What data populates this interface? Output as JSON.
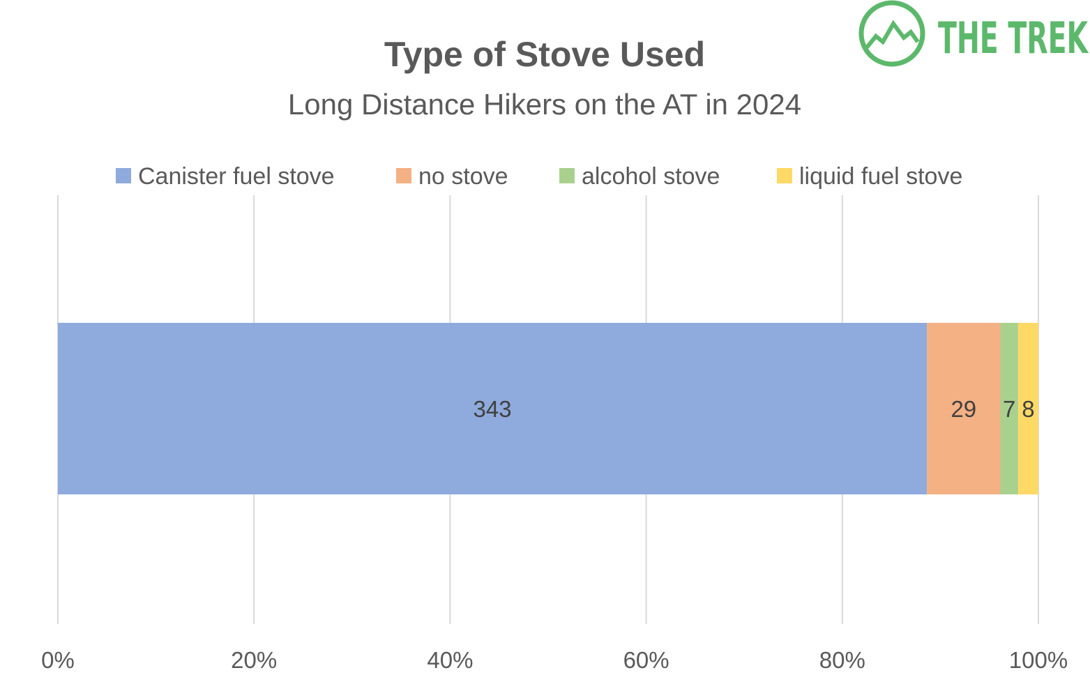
{
  "logo": {
    "text": "THE TREK",
    "color": "#5cb86b"
  },
  "chart_data": {
    "type": "bar",
    "orientation": "horizontal",
    "stacked": "percent",
    "title": "Type of Stove Used",
    "subtitle": "Long Distance Hikers on the AT in 2024",
    "categories": [
      ""
    ],
    "series": [
      {
        "name": "Canister fuel stove",
        "values": [
          343
        ],
        "color": "#8faadc"
      },
      {
        "name": "no stove",
        "values": [
          29
        ],
        "color": "#f4b183"
      },
      {
        "name": "alcohol stove",
        "values": [
          7
        ],
        "color": "#a9d18e"
      },
      {
        "name": "liquid fuel stove",
        "values": [
          8
        ],
        "color": "#ffd966"
      }
    ],
    "x_ticks": [
      "0%",
      "20%",
      "40%",
      "60%",
      "80%",
      "100%"
    ],
    "xlim": [
      0,
      100
    ],
    "grid": "vertical",
    "legend": "top",
    "data_labels": true,
    "label_color": "#404040",
    "text_color": "#595959",
    "grid_color": "#d9d9d9"
  }
}
